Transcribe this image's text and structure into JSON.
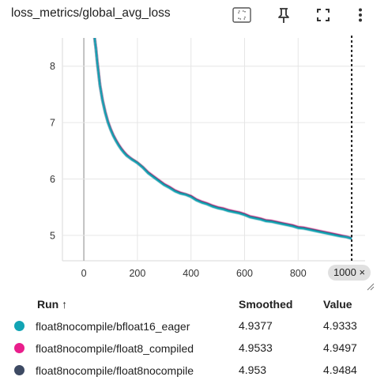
{
  "card": {
    "title": "loss_metrics/global_avg_loss",
    "toolbar_icons": [
      "fit-domain-icon",
      "pin-icon",
      "fullscreen-icon",
      "more-vert-icon"
    ]
  },
  "chart_data": {
    "type": "line",
    "xlim": [
      -80,
      1050
    ],
    "ylim": [
      4.55,
      8.5
    ],
    "x_ticks": [
      0,
      200,
      400,
      600,
      800
    ],
    "y_ticks": [
      5,
      6,
      7,
      8
    ],
    "grid": true,
    "hover_x": 1000,
    "hover_x_label": "1000 ×",
    "series": [
      {
        "name": "float8nocompile/bfloat16_eager",
        "color": "#12a4b4",
        "x": [
          40,
          45,
          50,
          55,
          60,
          70,
          80,
          90,
          100,
          110,
          120,
          130,
          140,
          150,
          160,
          170,
          180,
          190,
          200,
          220,
          240,
          260,
          280,
          300,
          320,
          340,
          360,
          380,
          400,
          420,
          440,
          460,
          480,
          500,
          520,
          540,
          560,
          580,
          600,
          620,
          640,
          660,
          680,
          700,
          720,
          740,
          760,
          780,
          800,
          820,
          840,
          860,
          880,
          900,
          920,
          940,
          960,
          980,
          1000
        ],
        "y": [
          8.5,
          8.3,
          8.05,
          7.85,
          7.65,
          7.38,
          7.17,
          7.0,
          6.87,
          6.76,
          6.67,
          6.59,
          6.52,
          6.46,
          6.41,
          6.38,
          6.34,
          6.31,
          6.28,
          6.2,
          6.1,
          6.03,
          5.96,
          5.89,
          5.84,
          5.78,
          5.74,
          5.72,
          5.68,
          5.62,
          5.58,
          5.55,
          5.51,
          5.48,
          5.46,
          5.43,
          5.41,
          5.39,
          5.36,
          5.32,
          5.3,
          5.28,
          5.25,
          5.24,
          5.22,
          5.2,
          5.18,
          5.16,
          5.13,
          5.12,
          5.1,
          5.08,
          5.06,
          5.04,
          5.02,
          5.0,
          4.98,
          4.97,
          4.94
        ]
      },
      {
        "name": "float8nocompile/float8_compiled",
        "color": "#e91e8c",
        "x": [
          40,
          45,
          50,
          55,
          60,
          70,
          80,
          90,
          100,
          110,
          120,
          130,
          140,
          150,
          160,
          170,
          180,
          190,
          200,
          220,
          240,
          260,
          280,
          300,
          320,
          340,
          360,
          380,
          400,
          420,
          440,
          460,
          480,
          500,
          520,
          540,
          560,
          580,
          600,
          620,
          640,
          660,
          680,
          700,
          720,
          740,
          760,
          780,
          800,
          820,
          840,
          860,
          880,
          900,
          920,
          940,
          960,
          980,
          1000
        ],
        "y": [
          8.5,
          8.32,
          8.08,
          7.88,
          7.67,
          7.4,
          7.19,
          7.02,
          6.89,
          6.78,
          6.69,
          6.61,
          6.54,
          6.48,
          6.43,
          6.39,
          6.35,
          6.32,
          6.29,
          6.21,
          6.12,
          6.05,
          5.98,
          5.91,
          5.86,
          5.8,
          5.76,
          5.73,
          5.7,
          5.64,
          5.6,
          5.57,
          5.53,
          5.5,
          5.48,
          5.45,
          5.43,
          5.41,
          5.38,
          5.34,
          5.32,
          5.3,
          5.27,
          5.26,
          5.24,
          5.22,
          5.2,
          5.18,
          5.15,
          5.14,
          5.12,
          5.1,
          5.08,
          5.06,
          5.04,
          5.02,
          5.0,
          4.98,
          4.95
        ]
      },
      {
        "name": "float8nocompile/float8nocompile",
        "color": "#3d4a63",
        "x": [
          40,
          45,
          50,
          55,
          60,
          70,
          80,
          90,
          100,
          110,
          120,
          130,
          140,
          150,
          160,
          170,
          180,
          190,
          200,
          220,
          240,
          260,
          280,
          300,
          320,
          340,
          360,
          380,
          400,
          420,
          440,
          460,
          480,
          500,
          520,
          540,
          560,
          580,
          600,
          620,
          640,
          660,
          680,
          700,
          720,
          740,
          760,
          780,
          800,
          820,
          840,
          860,
          880,
          900,
          920,
          940,
          960,
          980,
          1000
        ],
        "y": [
          8.5,
          8.31,
          8.07,
          7.87,
          7.66,
          7.39,
          7.18,
          7.01,
          6.88,
          6.77,
          6.68,
          6.6,
          6.53,
          6.47,
          6.42,
          6.38,
          6.35,
          6.32,
          6.29,
          6.21,
          6.11,
          6.04,
          5.97,
          5.9,
          5.85,
          5.79,
          5.75,
          5.73,
          5.69,
          5.63,
          5.59,
          5.56,
          5.52,
          5.49,
          5.47,
          5.44,
          5.42,
          5.4,
          5.37,
          5.33,
          5.31,
          5.29,
          5.26,
          5.25,
          5.23,
          5.21,
          5.19,
          5.17,
          5.14,
          5.13,
          5.11,
          5.09,
          5.07,
          5.05,
          5.03,
          5.01,
          4.99,
          4.97,
          4.95
        ]
      }
    ]
  },
  "legend": {
    "headers": {
      "run": "Run ↑",
      "smoothed": "Smoothed",
      "value": "Value"
    },
    "rows": [
      {
        "name": "float8nocompile/bfloat16_eager",
        "color": "#12a4b4",
        "smoothed": "4.9377",
        "value": "4.9333"
      },
      {
        "name": "float8nocompile/float8_compiled",
        "color": "#e91e8c",
        "smoothed": "4.9533",
        "value": "4.9497"
      },
      {
        "name": "float8nocompile/float8nocompile",
        "color": "#3d4a63",
        "smoothed": "4.953",
        "value": "4.9484"
      }
    ]
  }
}
